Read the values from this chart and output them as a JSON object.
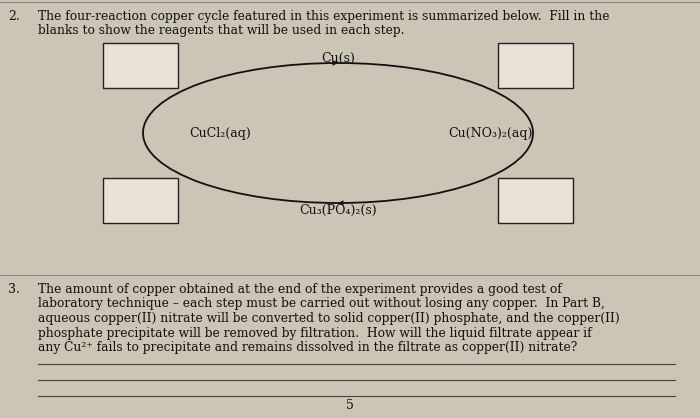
{
  "background_color": "#ccc5b5",
  "title_number": "2.",
  "title_text1": "The four-reaction copper cycle featured in this experiment is summarized below.  Fill in the",
  "title_text2": "blanks to show the reagents that will be used in each step.",
  "center_top_label": "Cu(s)",
  "left_label": "CuCl₂(aq)",
  "right_label": "Cu(NO₃)₂(aq)",
  "bottom_label": "Cu₃(PO₄)₂(s)",
  "paragraph_number": "3.",
  "paragraph_lines": [
    "The amount of copper obtained at the end of the experiment provides a good test of",
    "laboratory technique – each step must be carried out without losing any copper.  In Part B,",
    "aqueous copper(II) nitrate will be converted to solid copper(II) phosphate, and the copper(II)",
    "phosphate precipitate will be removed by filtration.  How will the liquid filtrate appear if",
    "any Cu²⁺ fails to precipitate and remains dissolved in the filtrate as copper(II) nitrate?"
  ],
  "page_number": "5",
  "box_fill": "#e8e2d6",
  "box_edge": "#222222",
  "arrow_color": "#111111",
  "text_color": "#111111",
  "line_color": "#444444",
  "top_line_color": "#888888"
}
